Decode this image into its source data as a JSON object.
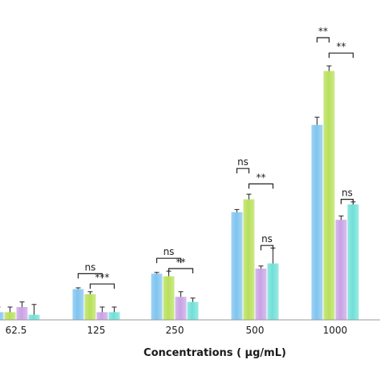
{
  "chart_data": {
    "type": "bar",
    "title": "",
    "xlabel": "Concentrations ( μg/mL)",
    "ylabel": "",
    "ylim": [
      0,
      100
    ],
    "categories": [
      "62.5",
      "125",
      "250",
      "500",
      "1000"
    ],
    "colors": [
      "#7fc4f0",
      "#b8e05a",
      "#c9a2e6",
      "#6fe0d8"
    ],
    "series": [
      {
        "values": [
          3,
          12,
          18,
          42,
          76
        ],
        "errors": [
          2,
          0.5,
          0.5,
          1,
          3
        ]
      },
      {
        "values": [
          3,
          10,
          17,
          47,
          97
        ],
        "errors": [
          2,
          1,
          2,
          2,
          2
        ]
      },
      {
        "values": [
          5,
          3,
          9,
          20,
          39
        ],
        "errors": [
          2,
          2,
          2,
          1,
          1.5
        ]
      },
      {
        "values": [
          2,
          3,
          7,
          22,
          45
        ],
        "errors": [
          4,
          2,
          1.5,
          6,
          1
        ]
      }
    ],
    "annotations": [
      {
        "group": "125",
        "label": "ns",
        "from": 0,
        "to": 2,
        "level": 18
      },
      {
        "group": "125",
        "label": "***",
        "from": 1,
        "to": 3,
        "level": 14
      },
      {
        "group": "250",
        "label": "ns",
        "from": 0,
        "to": 2,
        "level": 24
      },
      {
        "group": "250",
        "label": "**",
        "from": 1,
        "to": 3,
        "level": 20
      },
      {
        "group": "500",
        "label": "ns",
        "from": 0,
        "to": 1,
        "level": 59
      },
      {
        "group": "500",
        "label": "**",
        "from": 1,
        "to": 3,
        "level": 53
      },
      {
        "group": "500",
        "label": "ns",
        "from": 2,
        "to": 3,
        "level": 29
      },
      {
        "group": "1000",
        "label": "**",
        "from": 0,
        "to": 1,
        "level": 110
      },
      {
        "group": "1000",
        "label": "**",
        "from": 1,
        "to": 3,
        "level": 104
      },
      {
        "group": "1000",
        "label": "ns",
        "from": 2,
        "to": 3,
        "level": 47
      }
    ]
  }
}
